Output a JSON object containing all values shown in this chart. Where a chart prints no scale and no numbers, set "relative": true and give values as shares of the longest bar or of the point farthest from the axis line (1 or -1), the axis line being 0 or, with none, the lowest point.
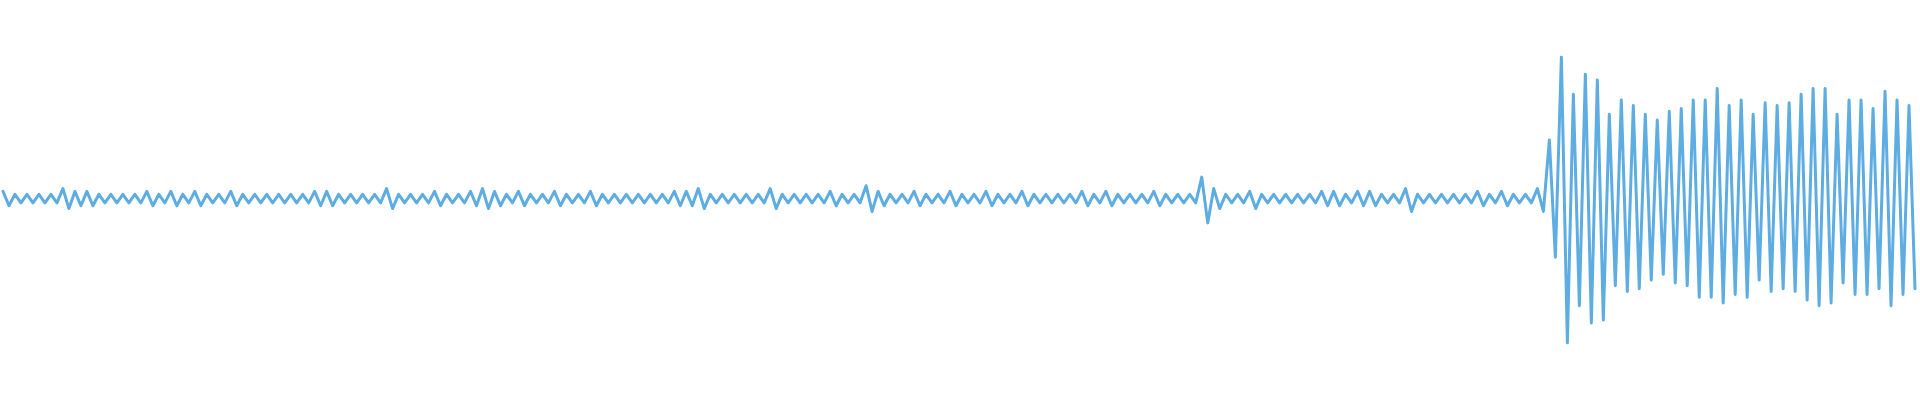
{
  "chart_data": {
    "type": "line",
    "relative": true,
    "color": "#5dade2",
    "categories": [
      null,
      null,
      null,
      null,
      null,
      null,
      null,
      null,
      null,
      null,
      null,
      null,
      null,
      null,
      null,
      null,
      null,
      null,
      null,
      null,
      null,
      null,
      null,
      null,
      null,
      null,
      null,
      null,
      null,
      null,
      null,
      null,
      null,
      null,
      null,
      null,
      null,
      null,
      null,
      null,
      null,
      null,
      null,
      null,
      null,
      null,
      null,
      null,
      null,
      null,
      null,
      null,
      null,
      null,
      null,
      null,
      null,
      null,
      null,
      null,
      null,
      null,
      null,
      null,
      null,
      null,
      null,
      null,
      null,
      null,
      null,
      null,
      null,
      null,
      null,
      null,
      null,
      null,
      null,
      null,
      null,
      null,
      null,
      null,
      null,
      null,
      null,
      null,
      null,
      null,
      null,
      null,
      null,
      null,
      null,
      null,
      null,
      null,
      null,
      null,
      null,
      null,
      null,
      null,
      null,
      null,
      null,
      null,
      null,
      null,
      null,
      null,
      null,
      null,
      null,
      null,
      null,
      null,
      null,
      null,
      null,
      null,
      null,
      null,
      null,
      null,
      null,
      null,
      null,
      null,
      null,
      null,
      null,
      null,
      null,
      null,
      null,
      null,
      null,
      null,
      null,
      null,
      null,
      null,
      null,
      null,
      null,
      null,
      null,
      null,
      null,
      null,
      null,
      null,
      null,
      null,
      null,
      null,
      null,
      null,
      null,
      null,
      null,
      null,
      null,
      null,
      null,
      null,
      null,
      null,
      null,
      null,
      null,
      null,
      null,
      null,
      null,
      null,
      null,
      null,
      null,
      null,
      null,
      null,
      null,
      null,
      null,
      null,
      null,
      null,
      null,
      null,
      null,
      null,
      null,
      null,
      null,
      null,
      null,
      null,
      null,
      null,
      null,
      null,
      null,
      null,
      null,
      null,
      null,
      null,
      null,
      null,
      null,
      null,
      null,
      null,
      null,
      null,
      null,
      null,
      null,
      null,
      null,
      null,
      null,
      null,
      null,
      null,
      null,
      null,
      null,
      null,
      null,
      null,
      null,
      null,
      null,
      null,
      null,
      null,
      null,
      null,
      null,
      null,
      null,
      null,
      null,
      null,
      null,
      null,
      null,
      null,
      null,
      null,
      null,
      null,
      null,
      null,
      null,
      null,
      null,
      null,
      null,
      null,
      null,
      null,
      null,
      null,
      null,
      null,
      null,
      null,
      null,
      null,
      null,
      null,
      null,
      null,
      null,
      null,
      null,
      null,
      null,
      null,
      null,
      null,
      null,
      null,
      null,
      null,
      null,
      null,
      null,
      null,
      null,
      null,
      null,
      null,
      null,
      null,
      null,
      null,
      null,
      null,
      null,
      null,
      null,
      null,
      null,
      null,
      null,
      null,
      null,
      null,
      null,
      null,
      null,
      null,
      null,
      null
    ],
    "values": [
      0.53,
      0.48,
      0.52,
      0.49,
      0.52,
      0.49,
      0.52,
      0.49,
      0.52,
      0.49,
      0.54,
      0.47,
      0.53,
      0.48,
      0.53,
      0.48,
      0.52,
      0.49,
      0.52,
      0.49,
      0.52,
      0.49,
      0.52,
      0.49,
      0.53,
      0.48,
      0.52,
      0.49,
      0.53,
      0.48,
      0.52,
      0.49,
      0.53,
      0.48,
      0.52,
      0.49,
      0.52,
      0.49,
      0.53,
      0.48,
      0.52,
      0.49,
      0.52,
      0.49,
      0.52,
      0.49,
      0.52,
      0.49,
      0.52,
      0.49,
      0.52,
      0.49,
      0.53,
      0.48,
      0.53,
      0.48,
      0.52,
      0.49,
      0.52,
      0.49,
      0.52,
      0.49,
      0.52,
      0.49,
      0.54,
      0.47,
      0.52,
      0.49,
      0.52,
      0.49,
      0.52,
      0.49,
      0.53,
      0.48,
      0.52,
      0.49,
      0.52,
      0.49,
      0.53,
      0.48,
      0.54,
      0.47,
      0.53,
      0.48,
      0.52,
      0.49,
      0.53,
      0.48,
      0.52,
      0.49,
      0.52,
      0.49,
      0.53,
      0.48,
      0.52,
      0.49,
      0.52,
      0.49,
      0.53,
      0.48,
      0.52,
      0.49,
      0.52,
      0.49,
      0.52,
      0.49,
      0.52,
      0.49,
      0.52,
      0.49,
      0.52,
      0.49,
      0.53,
      0.48,
      0.53,
      0.48,
      0.54,
      0.47,
      0.52,
      0.49,
      0.52,
      0.49,
      0.52,
      0.49,
      0.52,
      0.49,
      0.52,
      0.49,
      0.54,
      0.47,
      0.52,
      0.49,
      0.52,
      0.49,
      0.52,
      0.49,
      0.52,
      0.49,
      0.53,
      0.48,
      0.52,
      0.49,
      0.52,
      0.49,
      0.55,
      0.46,
      0.53,
      0.48,
      0.52,
      0.49,
      0.52,
      0.49,
      0.53,
      0.48,
      0.52,
      0.49,
      0.52,
      0.49,
      0.53,
      0.48,
      0.52,
      0.49,
      0.52,
      0.49,
      0.53,
      0.48,
      0.52,
      0.49,
      0.52,
      0.49,
      0.53,
      0.48,
      0.52,
      0.49,
      0.52,
      0.49,
      0.52,
      0.49,
      0.52,
      0.49,
      0.53,
      0.48,
      0.52,
      0.49,
      0.53,
      0.48,
      0.52,
      0.49,
      0.52,
      0.49,
      0.52,
      0.49,
      0.53,
      0.48,
      0.52,
      0.49,
      0.52,
      0.49,
      0.52,
      0.49,
      0.58,
      0.42,
      0.54,
      0.47,
      0.52,
      0.49,
      0.52,
      0.49,
      0.53,
      0.47,
      0.52,
      0.49,
      0.52,
      0.49,
      0.52,
      0.49,
      0.52,
      0.49,
      0.52,
      0.49,
      0.53,
      0.48,
      0.53,
      0.48,
      0.52,
      0.49,
      0.53,
      0.48,
      0.53,
      0.48,
      0.52,
      0.49,
      0.52,
      0.49,
      0.54,
      0.46,
      0.52,
      0.49,
      0.52,
      0.49,
      0.52,
      0.49,
      0.52,
      0.49,
      0.52,
      0.49,
      0.53,
      0.48,
      0.52,
      0.49,
      0.53,
      0.48,
      0.52,
      0.49,
      0.52,
      0.49,
      0.54,
      0.46,
      0.71,
      0.3,
      1,
      0,
      0.87,
      0.13,
      0.94,
      0.07,
      0.92,
      0.08,
      0.8,
      0.2,
      0.85,
      0.18,
      0.83,
      0.19,
      0.8,
      0.22,
      0.78,
      0.24,
      0.81,
      0.21,
      0.82,
      0.2,
      0.85,
      0.16,
      0.85,
      0.16,
      0.89,
      0.14,
      0.83,
      0.17,
      0.85,
      0.16,
      0.8,
      0.22,
      0.84,
      0.18,
      0.83,
      0.19,
      0.84,
      0.18,
      0.87,
      0.15,
      0.89,
      0.13,
      0.89,
      0.14,
      0.8,
      0.21,
      0.85,
      0.17,
      0.85,
      0.17,
      0.82,
      0.19,
      0.88,
      0.13,
      0.85,
      0.17,
      0.83,
      0.19
    ]
  }
}
